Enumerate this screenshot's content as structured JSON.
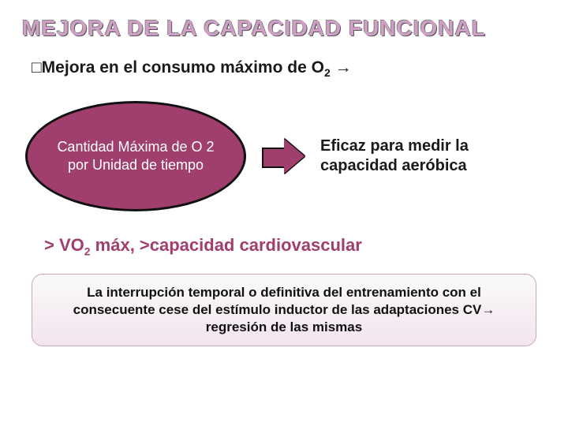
{
  "title": "MEJORA DE LA CAPACIDAD FUNCIONAL",
  "subtitle_prefix": "□Mejora en el consumo máximo de O",
  "subtitle_sub": "2",
  "subtitle_arrow": " →",
  "ellipse_text": "Cantidad Máxima de O 2 por Unidad de tiempo",
  "right_text": "Eficaz para medir la capacidad aeróbica",
  "line2_prefix": "> VO",
  "line2_sub": "2",
  "line2_rest": " máx, >capacidad cardiovascular",
  "note": "La interrupción temporal o definitiva del entrenamiento con el consecuente cese del estímulo inductor de las adaptaciones CV→ regresión de las mismas",
  "colors": {
    "title": "#cf9fc5",
    "accent": "#a03e6e",
    "text": "#1a1a1a",
    "note_border": "#c8a8bd",
    "note_bg_top": "#fafafa",
    "note_bg_bottom": "#f3e4ee"
  }
}
